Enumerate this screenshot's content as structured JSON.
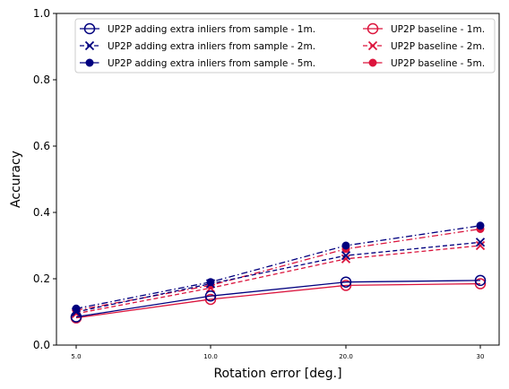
{
  "chart_data": {
    "type": "line",
    "title": "",
    "xlabel": "Rotation error [deg.]",
    "ylabel": "Accuracy",
    "categories": [
      "5.0",
      "10.0",
      "20.0",
      "30"
    ],
    "ylim": [
      0.0,
      1.0
    ],
    "yticks": [
      "0.0",
      "0.2",
      "0.4",
      "0.6",
      "0.8",
      "1.0"
    ],
    "grid": false,
    "legend_position": "top",
    "legend_columns": 2,
    "series": [
      {
        "name": "UP2P adding extra inliers from sample - 1m.",
        "color": "#00007f",
        "line_style": "solid",
        "marker": "open-circle",
        "values": [
          0.085,
          0.148,
          0.19,
          0.195
        ]
      },
      {
        "name": "UP2P adding extra inliers from sample - 2m.",
        "color": "#00007f",
        "line_style": "dashed",
        "marker": "x",
        "values": [
          0.1,
          0.185,
          0.27,
          0.31
        ]
      },
      {
        "name": "UP2P adding extra inliers from sample - 5m.",
        "color": "#00007f",
        "line_style": "dashdot",
        "marker": "filled-circle",
        "values": [
          0.11,
          0.19,
          0.3,
          0.36
        ]
      },
      {
        "name": "UP2P baseline - 1m.",
        "color": "#dc143c",
        "line_style": "solid",
        "marker": "open-circle",
        "values": [
          0.082,
          0.138,
          0.18,
          0.185
        ]
      },
      {
        "name": "UP2P baseline - 2m.",
        "color": "#dc143c",
        "line_style": "dashed",
        "marker": "x",
        "values": [
          0.095,
          0.172,
          0.26,
          0.3
        ]
      },
      {
        "name": "UP2P baseline - 5m.",
        "color": "#dc143c",
        "line_style": "dashdot",
        "marker": "filled-circle",
        "values": [
          0.105,
          0.18,
          0.29,
          0.35
        ]
      }
    ]
  }
}
